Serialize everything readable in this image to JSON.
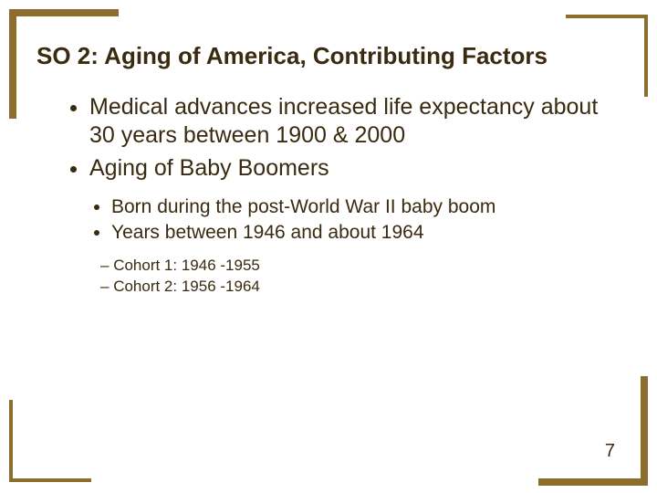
{
  "slide": {
    "title": "SO 2: Aging of America, Contributing Factors",
    "page_number": "7",
    "colors": {
      "accent": "#8a6d2f",
      "text": "#3a2a10",
      "background": "#ffffff"
    },
    "typography": {
      "family": "Arial",
      "title_fontsize": 26,
      "level1_fontsize": 25,
      "level2_fontsize": 21,
      "level3_fontsize": 17
    },
    "bullets": {
      "level1": [
        "Medical advances increased life expectancy about 30 years between 1900 & 2000",
        "Aging of Baby Boomers"
      ],
      "level2": [
        "Born during the post-World War II baby boom",
        "Years between 1946 and about 1964"
      ],
      "level3": [
        "Cohort 1: 1946 -1955",
        "Cohort 2: 1956 -1964"
      ]
    }
  }
}
